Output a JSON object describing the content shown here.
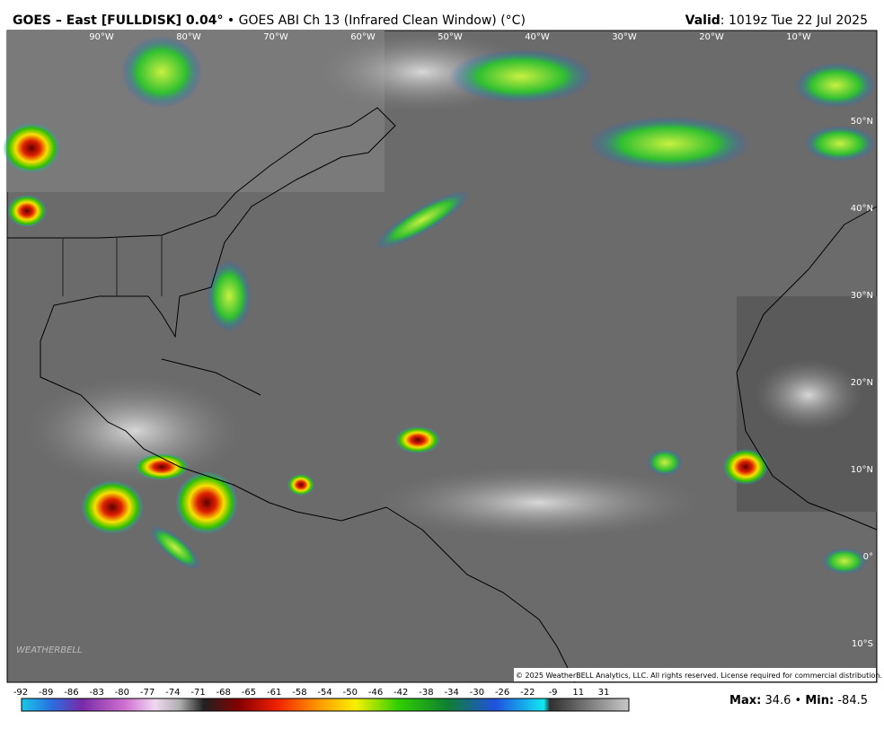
{
  "header": {
    "title_bold": "GOES – East [FULLDISK] 0.04°",
    "title_rest": "• GOES ABI Ch 13 (Infrared Clean Window) (°C)",
    "valid_label": "Valid",
    "valid_value": ": 1019z Tue 22 Jul 2025"
  },
  "map": {
    "longitude_labels": [
      "90°W",
      "80°W",
      "70°W",
      "60°W",
      "50°W",
      "40°W",
      "30°W",
      "20°W",
      "10°W"
    ],
    "latitude_labels": [
      "50°N",
      "40°N",
      "30°N",
      "20°N",
      "10°N",
      "0°",
      "10°S"
    ],
    "logo": "WEATHERBELL",
    "copyright": "© 2025 WeatherBELL Analytics, LLC. All rights reserved. License required for commercial distribution."
  },
  "colorbar": {
    "ticks": [
      -92,
      -89,
      -86,
      -83,
      -80,
      -77,
      -74,
      -71,
      -68,
      -65,
      -61,
      -58,
      -54,
      -50,
      -46,
      -42,
      -38,
      -34,
      -30,
      -26,
      -22,
      -9,
      11,
      31
    ]
  },
  "stats": {
    "max_label": "Max:",
    "max": 34.6,
    "min_label": "Min:",
    "min": -84.5
  }
}
